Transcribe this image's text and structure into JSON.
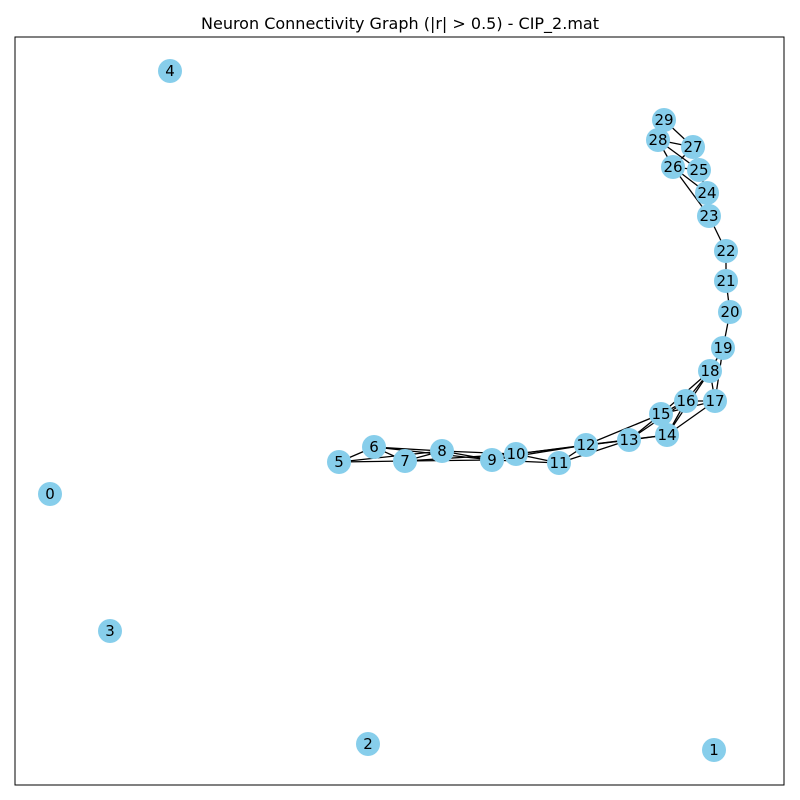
{
  "title": "Neuron Connectivity Graph (|r| > 0.5) - CIP_2.mat",
  "colors": {
    "node_fill": "#87ceeb",
    "edge": "#000000",
    "frame": "#000000",
    "background": "#ffffff"
  },
  "nodes": [
    {
      "id": "0"
    },
    {
      "id": "1"
    },
    {
      "id": "2"
    },
    {
      "id": "3"
    },
    {
      "id": "4"
    },
    {
      "id": "5"
    },
    {
      "id": "6"
    },
    {
      "id": "7"
    },
    {
      "id": "8"
    },
    {
      "id": "9"
    },
    {
      "id": "10"
    },
    {
      "id": "11"
    },
    {
      "id": "12"
    },
    {
      "id": "13"
    },
    {
      "id": "14"
    },
    {
      "id": "15"
    },
    {
      "id": "16"
    },
    {
      "id": "17"
    },
    {
      "id": "18"
    },
    {
      "id": "19"
    },
    {
      "id": "20"
    },
    {
      "id": "21"
    },
    {
      "id": "22"
    },
    {
      "id": "23"
    },
    {
      "id": "24"
    },
    {
      "id": "25"
    },
    {
      "id": "26"
    },
    {
      "id": "27"
    },
    {
      "id": "28"
    },
    {
      "id": "29"
    }
  ],
  "edges": [
    [
      "5",
      "6"
    ],
    [
      "5",
      "7"
    ],
    [
      "5",
      "8"
    ],
    [
      "6",
      "7"
    ],
    [
      "6",
      "8"
    ],
    [
      "6",
      "9"
    ],
    [
      "7",
      "8"
    ],
    [
      "7",
      "9"
    ],
    [
      "7",
      "10"
    ],
    [
      "8",
      "9"
    ],
    [
      "8",
      "10"
    ],
    [
      "9",
      "10"
    ],
    [
      "9",
      "11"
    ],
    [
      "9",
      "12"
    ],
    [
      "10",
      "11"
    ],
    [
      "10",
      "12"
    ],
    [
      "10",
      "13"
    ],
    [
      "11",
      "12"
    ],
    [
      "11",
      "13"
    ],
    [
      "12",
      "13"
    ],
    [
      "12",
      "14"
    ],
    [
      "12",
      "15"
    ],
    [
      "13",
      "14"
    ],
    [
      "13",
      "15"
    ],
    [
      "13",
      "16"
    ],
    [
      "14",
      "15"
    ],
    [
      "14",
      "16"
    ],
    [
      "14",
      "17"
    ],
    [
      "14",
      "18"
    ],
    [
      "15",
      "16"
    ],
    [
      "15",
      "17"
    ],
    [
      "15",
      "18"
    ],
    [
      "16",
      "17"
    ],
    [
      "16",
      "18"
    ],
    [
      "17",
      "18"
    ],
    [
      "17",
      "19"
    ],
    [
      "18",
      "19"
    ],
    [
      "19",
      "20"
    ],
    [
      "20",
      "21"
    ],
    [
      "21",
      "22"
    ],
    [
      "22",
      "23"
    ],
    [
      "23",
      "24"
    ],
    [
      "23",
      "26"
    ],
    [
      "24",
      "25"
    ],
    [
      "24",
      "26"
    ],
    [
      "25",
      "26"
    ],
    [
      "25",
      "27"
    ],
    [
      "25",
      "28"
    ],
    [
      "26",
      "27"
    ],
    [
      "26",
      "28"
    ],
    [
      "27",
      "28"
    ],
    [
      "27",
      "29"
    ],
    [
      "28",
      "29"
    ]
  ]
}
